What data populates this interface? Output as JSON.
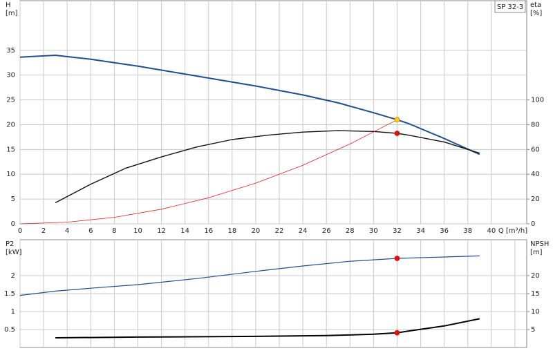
{
  "chart_data": [
    {
      "type": "line",
      "xlabel": "Q [m³/h]",
      "ylabel": "H",
      "yunit": "[m]",
      "y2label": "eta",
      "y2unit": "[%]",
      "box_label": "SP 32-3",
      "xlim": [
        0,
        43
      ],
      "xticks": [
        0,
        2,
        4,
        6,
        8,
        10,
        12,
        14,
        16,
        18,
        20,
        22,
        24,
        26,
        28,
        30,
        32,
        34,
        36,
        38,
        40
      ],
      "show_xtick_labels": true,
      "ylim": [
        0,
        45
      ],
      "yticks": [
        0,
        5,
        10,
        15,
        20,
        25,
        30,
        35
      ],
      "y2lim": [
        0,
        180
      ],
      "y2ticks": [
        0,
        20,
        40,
        60,
        80,
        100
      ],
      "grid": true,
      "series": [
        {
          "name": "H",
          "color": "#1f4e8c",
          "width": 2,
          "x": [
            0,
            3,
            6,
            10,
            15,
            20,
            24,
            27,
            30,
            32,
            33,
            36,
            39
          ],
          "values": [
            33.6,
            34,
            33.2,
            31.8,
            29.8,
            27.8,
            26,
            24.4,
            22.4,
            21,
            20.2,
            17.2,
            14
          ]
        },
        {
          "name": "eta",
          "axis": "y2",
          "color": "#111111",
          "width": 1.4,
          "x": [
            3,
            6,
            9,
            12,
            15,
            18,
            21,
            24,
            27,
            30,
            32,
            33,
            36,
            39
          ],
          "values": [
            17,
            32,
            45,
            54,
            62,
            68,
            71.5,
            74,
            75.2,
            74.5,
            73,
            71.5,
            66,
            57
          ]
        },
        {
          "name": "system",
          "color": "#e02020",
          "width": 0.8,
          "x": [
            0,
            4,
            8,
            12,
            16,
            20,
            24,
            28,
            32
          ],
          "values": [
            0,
            0.33,
            1.31,
            2.95,
            5.25,
            8.2,
            11.8,
            16.1,
            21
          ]
        }
      ],
      "markers": [
        {
          "x": 32,
          "value": 21,
          "color": "#ffd200"
        },
        {
          "x": 32,
          "value": 73,
          "axis": "y2",
          "color": "#e01010"
        }
      ]
    },
    {
      "type": "line",
      "ylabel": "P2",
      "yunit": "[kW]",
      "y2label": "NPSH",
      "y2unit": "[m]",
      "xlim": [
        0,
        43
      ],
      "xticks": [
        0,
        2,
        4,
        6,
        8,
        10,
        12,
        14,
        16,
        18,
        20,
        22,
        24,
        26,
        28,
        30,
        32,
        34,
        36,
        38,
        40,
        42
      ],
      "show_xtick_labels": false,
      "ylim": [
        0,
        3
      ],
      "yticks": [
        0.5,
        1.0,
        1.5,
        2.0
      ],
      "y2lim": [
        0,
        30
      ],
      "y2ticks": [
        5,
        10,
        15,
        20
      ],
      "grid": true,
      "series": [
        {
          "name": "P2",
          "color": "#1f4e8c",
          "width": 1.2,
          "x": [
            0,
            3,
            6,
            10,
            15,
            20,
            24,
            28,
            32,
            36,
            39
          ],
          "values": [
            1.45,
            1.57,
            1.65,
            1.75,
            1.92,
            2.12,
            2.27,
            2.4,
            2.48,
            2.52,
            2.55
          ]
        },
        {
          "name": "NPSH",
          "axis": "y2",
          "color": "#000000",
          "width": 2,
          "x": [
            3,
            10,
            20,
            26,
            30,
            32,
            33,
            36,
            39
          ],
          "values": [
            2.7,
            2.9,
            3.1,
            3.3,
            3.7,
            4.1,
            4.6,
            6,
            8
          ]
        }
      ],
      "markers": [
        {
          "x": 32,
          "value": 2.48,
          "color": "#e01010"
        },
        {
          "x": 32,
          "value": 4.1,
          "axis": "y2",
          "color": "#e01010"
        }
      ]
    }
  ]
}
